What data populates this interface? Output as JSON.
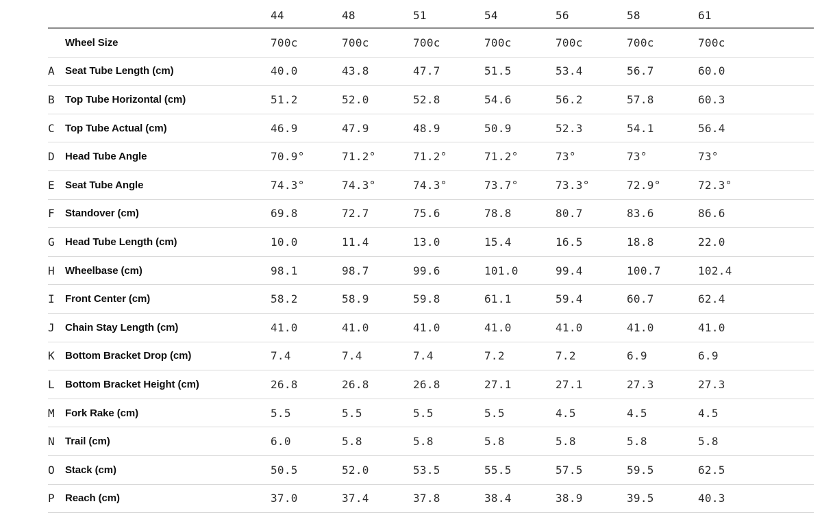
{
  "colors": {
    "background": "#ffffff",
    "header_rule": "#8c8c8c",
    "row_rule": "#d9d9d9",
    "label_text": "#101010",
    "value_text": "#2e2e2e"
  },
  "chart_data": {
    "type": "table",
    "size_columns": [
      "44",
      "48",
      "51",
      "54",
      "56",
      "58",
      "61"
    ],
    "rows": [
      {
        "letter": "",
        "label": "Wheel Size",
        "values": [
          "700c",
          "700c",
          "700c",
          "700c",
          "700c",
          "700c",
          "700c"
        ]
      },
      {
        "letter": "A",
        "label": "Seat Tube Length (cm)",
        "values": [
          "40.0",
          "43.8",
          "47.7",
          "51.5",
          "53.4",
          "56.7",
          "60.0"
        ]
      },
      {
        "letter": "B",
        "label": "Top Tube Horizontal (cm)",
        "values": [
          "51.2",
          "52.0",
          "52.8",
          "54.6",
          "56.2",
          "57.8",
          "60.3"
        ]
      },
      {
        "letter": "C",
        "label": "Top Tube Actual (cm)",
        "values": [
          "46.9",
          "47.9",
          "48.9",
          "50.9",
          "52.3",
          "54.1",
          "56.4"
        ]
      },
      {
        "letter": "D",
        "label": "Head Tube Angle",
        "values": [
          "70.9°",
          "71.2°",
          "71.2°",
          "71.2°",
          "73°",
          "73°",
          "73°"
        ]
      },
      {
        "letter": "E",
        "label": "Seat Tube Angle",
        "values": [
          "74.3°",
          "74.3°",
          "74.3°",
          "73.7°",
          "73.3°",
          "72.9°",
          "72.3°"
        ]
      },
      {
        "letter": "F",
        "label": "Standover (cm)",
        "values": [
          "69.8",
          "72.7",
          "75.6",
          "78.8",
          "80.7",
          "83.6",
          "86.6"
        ]
      },
      {
        "letter": "G",
        "label": "Head Tube Length (cm)",
        "values": [
          "10.0",
          "11.4",
          "13.0",
          "15.4",
          "16.5",
          "18.8",
          "22.0"
        ]
      },
      {
        "letter": "H",
        "label": "Wheelbase (cm)",
        "values": [
          "98.1",
          "98.7",
          "99.6",
          "101.0",
          "99.4",
          "100.7",
          "102.4"
        ]
      },
      {
        "letter": "I",
        "label": "Front Center (cm)",
        "values": [
          "58.2",
          "58.9",
          "59.8",
          "61.1",
          "59.4",
          "60.7",
          "62.4"
        ]
      },
      {
        "letter": "J",
        "label": "Chain Stay Length (cm)",
        "values": [
          "41.0",
          "41.0",
          "41.0",
          "41.0",
          "41.0",
          "41.0",
          "41.0"
        ]
      },
      {
        "letter": "K",
        "label": "Bottom Bracket Drop (cm)",
        "values": [
          "7.4",
          "7.4",
          "7.4",
          "7.2",
          "7.2",
          "6.9",
          "6.9"
        ]
      },
      {
        "letter": "L",
        "label": "Bottom Bracket Height (cm)",
        "values": [
          "26.8",
          "26.8",
          "26.8",
          "27.1",
          "27.1",
          "27.3",
          "27.3"
        ]
      },
      {
        "letter": "M",
        "label": "Fork Rake (cm)",
        "values": [
          "5.5",
          "5.5",
          "5.5",
          "5.5",
          "4.5",
          "4.5",
          "4.5"
        ]
      },
      {
        "letter": "N",
        "label": "Trail (cm)",
        "values": [
          "6.0",
          "5.8",
          "5.8",
          "5.8",
          "5.8",
          "5.8",
          "5.8"
        ]
      },
      {
        "letter": "O",
        "label": "Stack (cm)",
        "values": [
          "50.5",
          "52.0",
          "53.5",
          "55.5",
          "57.5",
          "59.5",
          "62.5"
        ]
      },
      {
        "letter": "P",
        "label": "Reach (cm)",
        "values": [
          "37.0",
          "37.4",
          "37.8",
          "38.4",
          "38.9",
          "39.5",
          "40.3"
        ]
      }
    ]
  }
}
